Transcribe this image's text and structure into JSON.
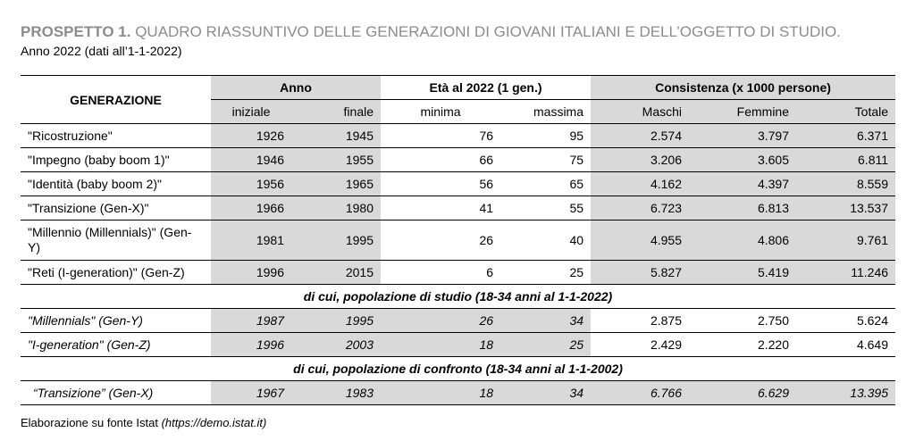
{
  "title": {
    "bold": "PROSPETTO 1.",
    "rest": "QUADRO RIASSUNTIVO DELLE GENERAZIONI DI GIOVANI ITALIANI E DELL’OGGETTO DI STUDIO."
  },
  "subtitle": "Anno 2022 (dati all’1-1-2022)",
  "table": {
    "header_generazione": "GENERAZIONE",
    "group_headers": [
      "Anno",
      "Età al 2022 (1 gen.)",
      "Consistenza (x 1000 persone)"
    ],
    "sub_headers": [
      "iniziale",
      "finale",
      "minima",
      "massima",
      "Maschi",
      "Femmine",
      "Totale"
    ],
    "rows_main": [
      {
        "name": "\"Ricostruzione\"",
        "values": [
          "1926",
          "1945",
          "76",
          "95",
          "2.574",
          "3.797",
          "6.371"
        ]
      },
      {
        "name": "\"Impegno (baby boom 1)\"",
        "values": [
          "1946",
          "1955",
          "66",
          "75",
          "3.206",
          "3.605",
          "6.811"
        ]
      },
      {
        "name": "\"Identità (baby boom 2)\"",
        "values": [
          "1956",
          "1965",
          "56",
          "65",
          "4.162",
          "4.397",
          "8.559"
        ]
      },
      {
        "name": "\"Transizione (Gen-X)\"",
        "values": [
          "1966",
          "1980",
          "41",
          "55",
          "6.723",
          "6.813",
          "13.537"
        ]
      },
      {
        "name": "\"Millennio (Millennials)\" (Gen-Y)",
        "values": [
          "1981",
          "1995",
          "26",
          "40",
          "4.955",
          "4.806",
          "9.761"
        ]
      },
      {
        "name": "\"Reti (I-generation)\" (Gen-Z)",
        "values": [
          "1996",
          "2015",
          "6",
          "25",
          "5.827",
          "5.419",
          "11.246"
        ]
      }
    ],
    "section_study": "di cui, popolazione di studio (18-34 anni al 1-1-2022)",
    "rows_study": [
      {
        "name": "\"Millennials\" (Gen-Y)",
        "values": [
          "1987",
          "1995",
          "26",
          "34",
          "2.875",
          "2.750",
          "5.624"
        ]
      },
      {
        "name": "\"I-generation\" (Gen-Z)",
        "values": [
          "1996",
          "2003",
          "18",
          "25",
          "2.429",
          "2.220",
          "4.649"
        ]
      }
    ],
    "section_compare": "di cui, popolazione di confronto (18-34 anni al 1-1-2002)",
    "rows_compare": [
      {
        "name": "“Transizione” (Gen-X)",
        "values": [
          "1967",
          "1983",
          "18",
          "34",
          "6.766",
          "6.629",
          "13.395"
        ]
      }
    ]
  },
  "footer": {
    "text": "Elaborazione su fonte Istat",
    "link": "(https://demo.istat.it)"
  },
  "colors": {
    "shade": "#d9d9d9",
    "title_gray": "#8c8c8c"
  }
}
